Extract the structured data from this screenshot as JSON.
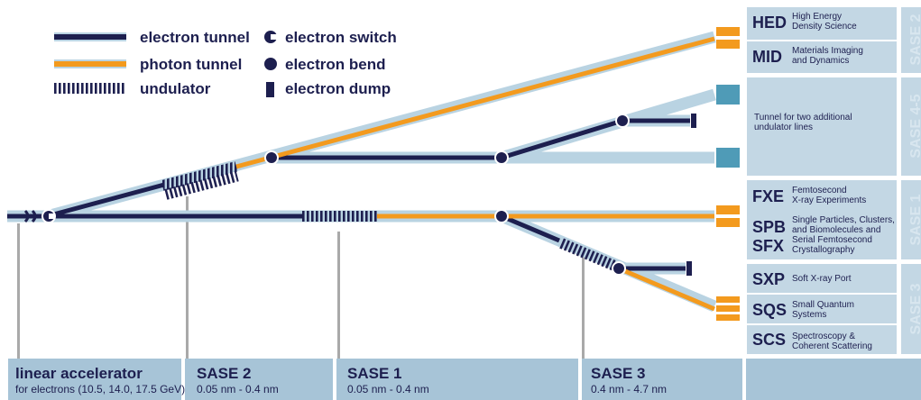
{
  "legend": {
    "electron_tunnel": "electron tunnel",
    "photon_tunnel": "photon tunnel",
    "undulator": "undulator",
    "electron_switch": "electron switch",
    "electron_bend": "electron bend",
    "electron_dump": "electron dump"
  },
  "instruments": {
    "hed": {
      "code": "HED",
      "desc1": "High Energy",
      "desc2": "Density Science"
    },
    "mid": {
      "code": "MID",
      "desc1": "Materials Imaging",
      "desc2": "and Dynamics"
    },
    "tunnel": {
      "desc1": "Tunnel for two additional",
      "desc2": "undulator lines"
    },
    "fxe": {
      "code": "FXE",
      "desc1": "Femtosecond",
      "desc2": "X-ray Experiments"
    },
    "spb": {
      "code": "SPB",
      "desc1": "Single Particles, Clusters,",
      "desc2": "and Biomolecules and"
    },
    "sfx": {
      "code": "SFX",
      "desc1": "Serial Femtosecond",
      "desc2": "Crystallography"
    },
    "sxp": {
      "code": "SXP",
      "desc1": "Soft X-ray Port"
    },
    "sqs": {
      "code": "SQS",
      "desc1": "Small Quantum",
      "desc2": "Systems"
    },
    "scs": {
      "code": "SCS",
      "desc1": "Spectroscopy &",
      "desc2": "Coherent Scattering"
    }
  },
  "side_labels": {
    "sase2": "SASE 2",
    "sase45": "SASE 4-5",
    "sase1": "SASE 1",
    "sase3": "SASE 3"
  },
  "bottom": {
    "linac": {
      "title": "linear accelerator",
      "sub": "for electrons (10.5, 14.0, 17.5 GeV)"
    },
    "sase2": {
      "title": "SASE 2",
      "sub": "0.05 nm - 0.4 nm"
    },
    "sase1": {
      "title": "SASE 1",
      "sub": "0.05 nm - 0.4 nm"
    },
    "sase3": {
      "title": "SASE 3",
      "sub": "0.4 nm - 4.7 nm"
    }
  },
  "colors": {
    "navy": "#1d1f4f",
    "orange": "#f39a1e",
    "light_blue": "#b9d3e2",
    "teal": "#4f9bb7",
    "panel": "#c3d7e4",
    "bar": "#a7c4d7",
    "grey": "#a9a9a9"
  }
}
